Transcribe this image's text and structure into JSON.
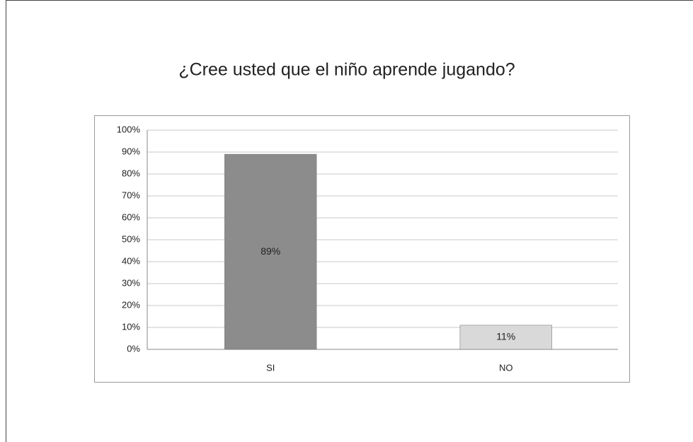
{
  "chart_data": {
    "type": "bar",
    "title": "¿Cree usted que el niño aprende jugando?",
    "categories": [
      "SI",
      "NO"
    ],
    "values": [
      89,
      11
    ],
    "value_labels": [
      "89%",
      "11%"
    ],
    "colors": [
      "#8c8c8c",
      "#d9d9d9"
    ],
    "ylim": [
      0,
      100
    ],
    "yticks": [
      {
        "value": 0,
        "label": "0%"
      },
      {
        "value": 10,
        "label": "10%"
      },
      {
        "value": 20,
        "label": "20%"
      },
      {
        "value": 30,
        "label": "30%"
      },
      {
        "value": 40,
        "label": "40%"
      },
      {
        "value": 50,
        "label": "50%"
      },
      {
        "value": 60,
        "label": "60%"
      },
      {
        "value": 70,
        "label": "70%"
      },
      {
        "value": 80,
        "label": "80%"
      },
      {
        "value": 90,
        "label": "90%"
      },
      {
        "value": 100,
        "label": "100%"
      }
    ],
    "grid": true
  }
}
